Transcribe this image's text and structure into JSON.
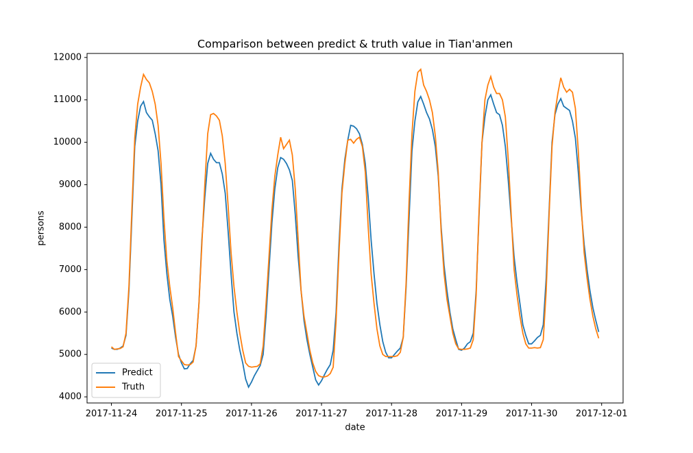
{
  "chart_data": {
    "type": "line",
    "title": "Comparison between predict & truth value in Tian'anmen",
    "xlabel": "date",
    "ylabel": "persons",
    "x": [
      0,
      1,
      2,
      3,
      4,
      5,
      6,
      7,
      8,
      9,
      10,
      11,
      12,
      13,
      14,
      15,
      16,
      17,
      18,
      19,
      20,
      21,
      22,
      23,
      24,
      25,
      26,
      27,
      28,
      29,
      30,
      31,
      32,
      33,
      34,
      35,
      36,
      37,
      38,
      39,
      40,
      41,
      42,
      43,
      44,
      45,
      46,
      47,
      48,
      49,
      50,
      51,
      52,
      53,
      54,
      55,
      56,
      57,
      58,
      59,
      60,
      61,
      62,
      63,
      64,
      65,
      66,
      67,
      68,
      69,
      70,
      71,
      72,
      73,
      74,
      75,
      76,
      77,
      78,
      79,
      80,
      81,
      82,
      83,
      84,
      85,
      86,
      87,
      88,
      89,
      90,
      91,
      92,
      93,
      94,
      95,
      96,
      97,
      98,
      99,
      100,
      101,
      102,
      103,
      104,
      105,
      106,
      107,
      108,
      109,
      110,
      111,
      112,
      113,
      114,
      115,
      116,
      117,
      118,
      119,
      120,
      121,
      122,
      123,
      124,
      125,
      126,
      127,
      128,
      129,
      130,
      131,
      132,
      133,
      134,
      135,
      136,
      137,
      138,
      139,
      140,
      141,
      142,
      143,
      144,
      145,
      146,
      147,
      148,
      149,
      150,
      151,
      152,
      153,
      154,
      155,
      156,
      157,
      158,
      159,
      160,
      161,
      162,
      163,
      164,
      165,
      166,
      167
    ],
    "series": [
      {
        "name": "Predict",
        "color": "#1f77b4",
        "values": [
          5150,
          5120,
          5120,
          5150,
          5200,
          5450,
          6500,
          8200,
          9900,
          10500,
          10850,
          10960,
          10700,
          10600,
          10520,
          10200,
          9800,
          9000,
          7700,
          6900,
          6300,
          5900,
          5400,
          5000,
          4800,
          4660,
          4670,
          4780,
          4860,
          5200,
          6200,
          7700,
          8700,
          9500,
          9740,
          9600,
          9520,
          9520,
          9250,
          8800,
          7900,
          6900,
          6000,
          5500,
          5100,
          4800,
          4420,
          4230,
          4350,
          4500,
          4620,
          4740,
          5000,
          5900,
          7000,
          8100,
          8900,
          9400,
          9640,
          9600,
          9500,
          9350,
          9100,
          8300,
          7300,
          6500,
          5800,
          5350,
          5000,
          4700,
          4400,
          4280,
          4380,
          4520,
          4650,
          4760,
          5100,
          6000,
          7600,
          8900,
          9600,
          10050,
          10400,
          10380,
          10320,
          10200,
          9950,
          9500,
          8700,
          7700,
          6900,
          6200,
          5700,
          5300,
          5050,
          4920,
          4920,
          5000,
          5080,
          5150,
          5400,
          6600,
          8200,
          9800,
          10500,
          10950,
          11080,
          10900,
          10700,
          10550,
          10300,
          9900,
          9200,
          8000,
          7100,
          6500,
          6000,
          5600,
          5350,
          5120,
          5100,
          5150,
          5250,
          5300,
          5500,
          6500,
          8300,
          10000,
          10600,
          11000,
          11120,
          10900,
          10700,
          10650,
          10400,
          9900,
          9100,
          8200,
          7300,
          6700,
          6200,
          5700,
          5450,
          5250,
          5250,
          5320,
          5400,
          5450,
          5700,
          6800,
          8400,
          10000,
          10650,
          10900,
          11030,
          10850,
          10800,
          10750,
          10500,
          10100,
          9300,
          8400,
          7600,
          7000,
          6500,
          6100,
          5800,
          5530
        ]
      },
      {
        "name": "Truth",
        "color": "#ff7f0e",
        "values": [
          5180,
          5120,
          5130,
          5140,
          5180,
          5500,
          6600,
          8400,
          10100,
          10900,
          11300,
          11600,
          11480,
          11400,
          11200,
          10900,
          10400,
          9500,
          8200,
          7200,
          6600,
          6100,
          5500,
          4950,
          4850,
          4760,
          4750,
          4760,
          4820,
          5200,
          6200,
          7600,
          9000,
          10200,
          10650,
          10680,
          10620,
          10520,
          10150,
          9500,
          8500,
          7400,
          6600,
          6000,
          5500,
          5100,
          4800,
          4720,
          4700,
          4710,
          4720,
          4780,
          5200,
          6200,
          7300,
          8400,
          9200,
          9700,
          10120,
          9850,
          9950,
          10050,
          9700,
          8900,
          7700,
          6500,
          5900,
          5500,
          5100,
          4800,
          4600,
          4500,
          4470,
          4470,
          4490,
          4550,
          4700,
          5800,
          7400,
          8800,
          9500,
          10050,
          10070,
          9980,
          10070,
          10120,
          9900,
          9300,
          8000,
          6900,
          6200,
          5600,
          5200,
          5000,
          4950,
          4950,
          4950,
          4950,
          4970,
          5050,
          5400,
          6700,
          8600,
          10200,
          11200,
          11650,
          11720,
          11350,
          11200,
          11000,
          10700,
          10150,
          9300,
          7900,
          6900,
          6300,
          5900,
          5500,
          5250,
          5130,
          5120,
          5120,
          5130,
          5150,
          5350,
          6400,
          8400,
          10000,
          11000,
          11350,
          11550,
          11300,
          11150,
          11150,
          11000,
          10600,
          9600,
          8300,
          7000,
          6400,
          5900,
          5500,
          5250,
          5150,
          5150,
          5160,
          5150,
          5160,
          5350,
          6500,
          8300,
          9900,
          10700,
          11150,
          11520,
          11300,
          11180,
          11250,
          11180,
          10800,
          9800,
          8500,
          7400,
          6800,
          6300,
          5900,
          5600,
          5380
        ]
      }
    ],
    "xlim": [
      -8.35,
      175.35
    ],
    "xticks": [
      {
        "value": 0,
        "label": "2017-11-24"
      },
      {
        "value": 24,
        "label": "2017-11-25"
      },
      {
        "value": 48,
        "label": "2017-11-26"
      },
      {
        "value": 72,
        "label": "2017-11-27"
      },
      {
        "value": 96,
        "label": "2017-11-28"
      },
      {
        "value": 120,
        "label": "2017-11-29"
      },
      {
        "value": 144,
        "label": "2017-11-30"
      },
      {
        "value": 168,
        "label": "2017-12-01"
      }
    ],
    "ylim": [
      3856,
      12094
    ],
    "yticks": [
      4000,
      5000,
      6000,
      7000,
      8000,
      9000,
      10000,
      11000,
      12000
    ],
    "legend": "lower left",
    "grid": false
  }
}
